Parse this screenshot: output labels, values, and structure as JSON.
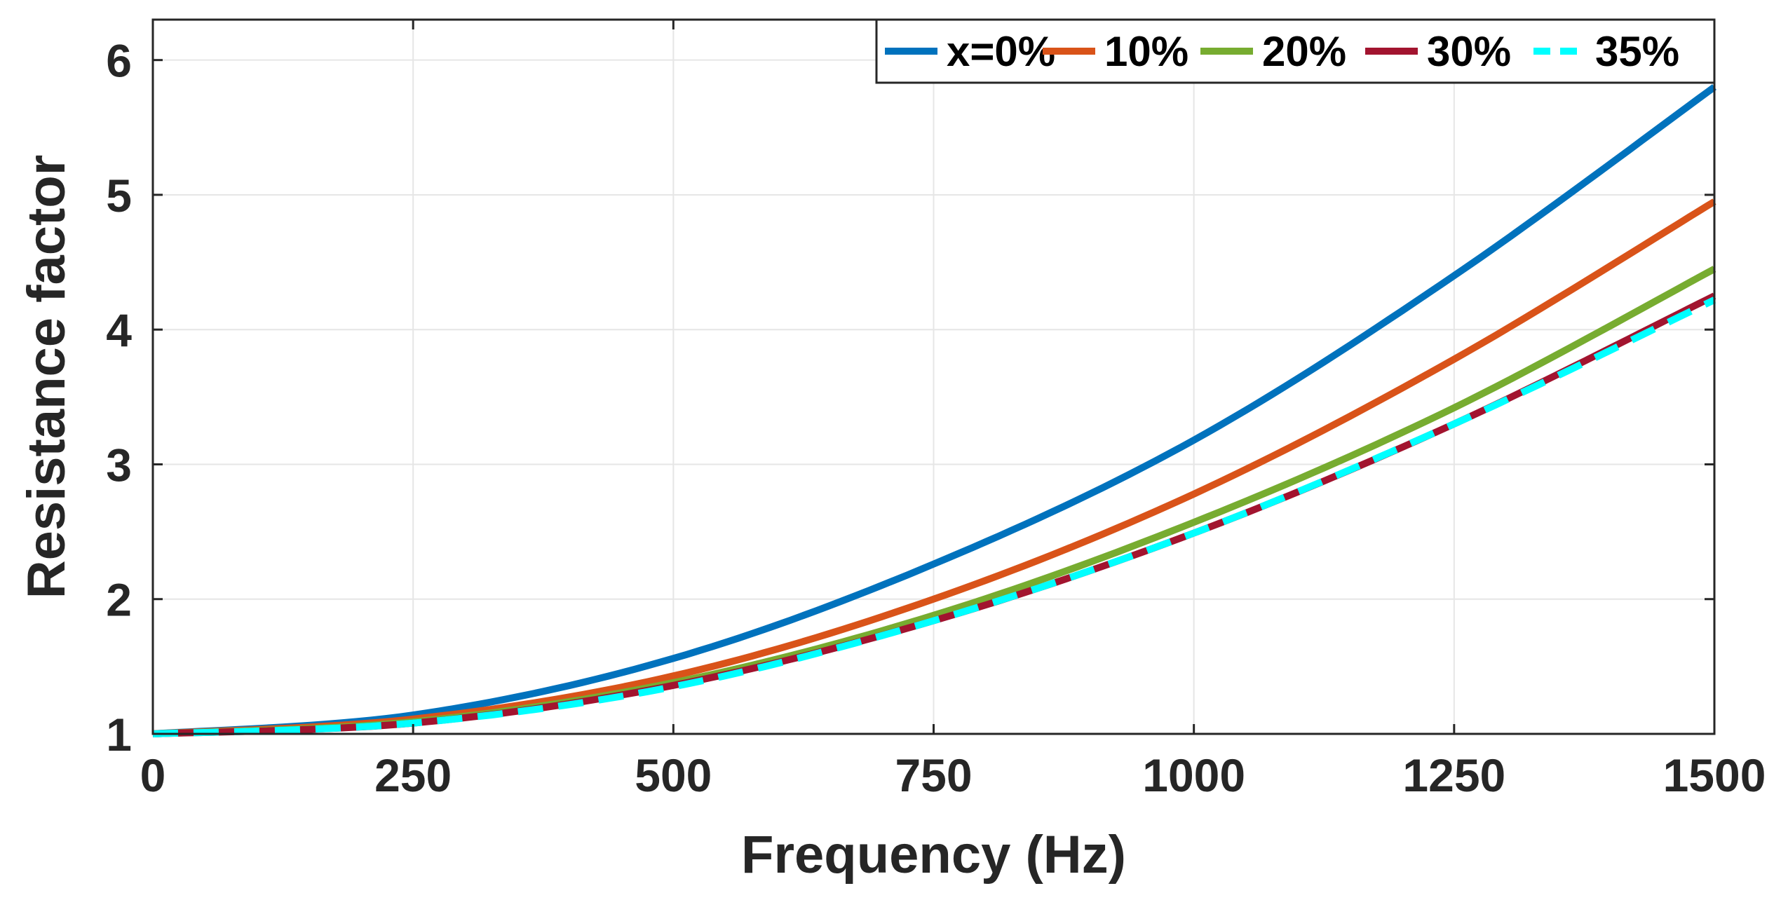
{
  "chart_data": {
    "type": "line",
    "title": "",
    "xlabel": "Frequency (Hz)",
    "ylabel": "Resistance factor",
    "xlim": [
      0,
      1500
    ],
    "ylim": [
      1,
      6.3
    ],
    "x_ticks": [
      0,
      250,
      500,
      750,
      1000,
      1250,
      1500
    ],
    "x_tick_labels": [
      "0",
      "250",
      "500",
      "750",
      "1000",
      "1250",
      "1500"
    ],
    "y_ticks": [
      1,
      2,
      3,
      4,
      5,
      6
    ],
    "y_tick_labels": [
      "1",
      "2",
      "3",
      "4",
      "5",
      "6"
    ],
    "grid": true,
    "legend_position": "top-right",
    "legend_orientation": "horizontal",
    "x": [
      0,
      250,
      500,
      750,
      1000,
      1250,
      1500
    ],
    "series": [
      {
        "name": "x=0%",
        "color": "#0072BD",
        "dashed": false,
        "values": [
          1.0,
          1.14,
          1.56,
          2.26,
          3.18,
          4.4,
          5.8
        ]
      },
      {
        "name": "10%",
        "color": "#D95319",
        "dashed": false,
        "values": [
          1.0,
          1.11,
          1.43,
          2.0,
          2.78,
          3.78,
          4.95
        ]
      },
      {
        "name": "20%",
        "color": "#77AC30",
        "dashed": false,
        "values": [
          1.0,
          1.09,
          1.38,
          1.88,
          2.57,
          3.42,
          4.45
        ]
      },
      {
        "name": "30%",
        "color": "#A2142F",
        "dashed": false,
        "values": [
          1.0,
          1.08,
          1.36,
          1.84,
          2.49,
          3.3,
          4.25
        ]
      },
      {
        "name": "35%",
        "color": "#00FFFF",
        "dashed": true,
        "values": [
          1.0,
          1.08,
          1.35,
          1.84,
          2.49,
          3.3,
          4.22
        ]
      }
    ]
  }
}
